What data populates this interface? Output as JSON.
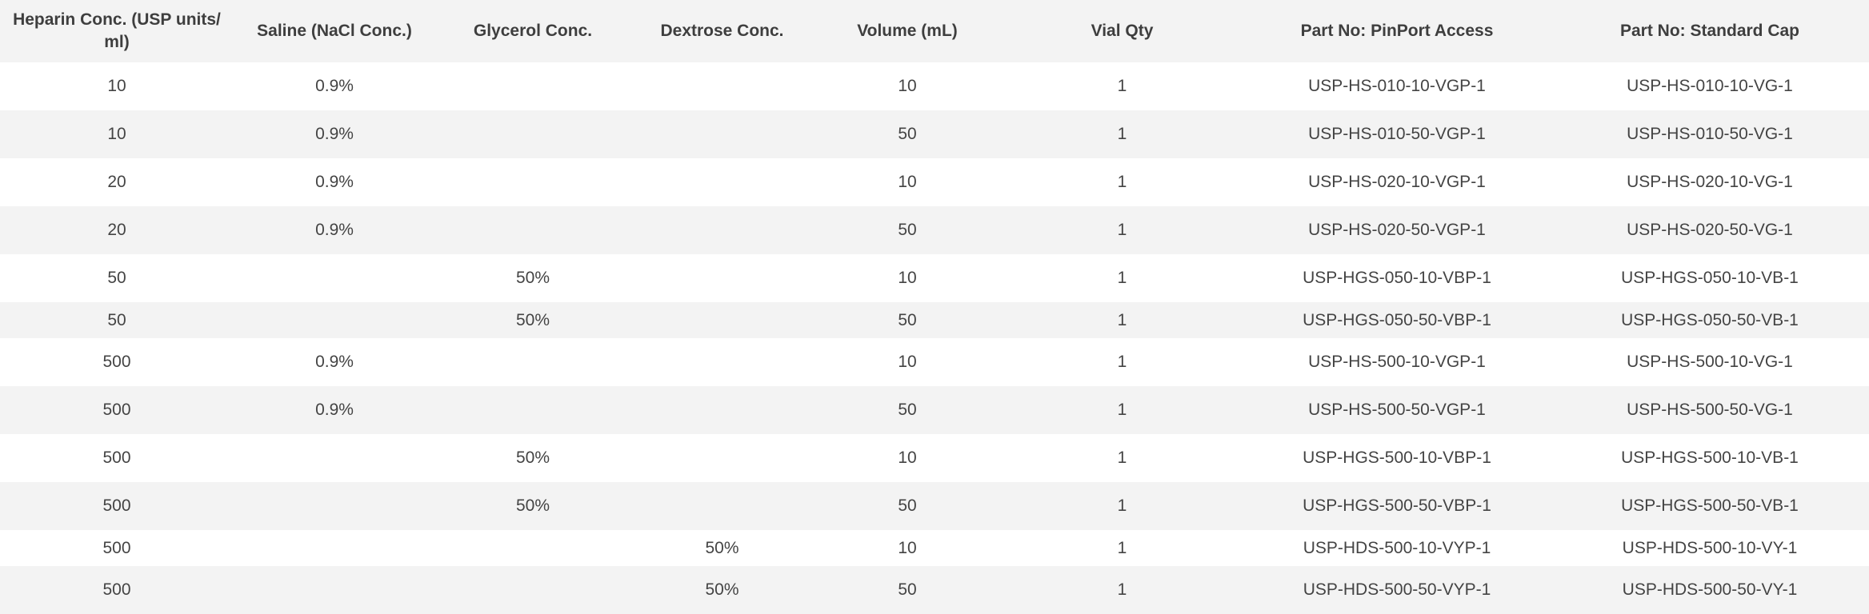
{
  "table": {
    "headers": [
      "Heparin Conc. (USP units/ ml)",
      "Saline (NaCl Conc.)",
      "Glycerol Conc.",
      "Dextrose Conc.",
      "Volume (mL)",
      "Vial Qty",
      "Part No: PinPort Access",
      "Part No: Standard Cap"
    ],
    "rows": [
      [
        "10",
        "0.9%",
        "",
        "",
        "10",
        "1",
        "USP-HS-010-10-VGP-1",
        "USP-HS-010-10-VG-1"
      ],
      [
        "10",
        "0.9%",
        "",
        "",
        "50",
        "1",
        "USP-HS-010-50-VGP-1",
        "USP-HS-010-50-VG-1"
      ],
      [
        "20",
        "0.9%",
        "",
        "",
        "10",
        "1",
        "USP-HS-020-10-VGP-1",
        "USP-HS-020-10-VG-1"
      ],
      [
        "20",
        "0.9%",
        "",
        "",
        "50",
        "1",
        "USP-HS-020-50-VGP-1",
        "USP-HS-020-50-VG-1"
      ],
      [
        "50",
        "",
        "50%",
        "",
        "10",
        "1",
        "USP-HGS-050-10-VBP-1",
        "USP-HGS-050-10-VB-1"
      ],
      [
        "50",
        "",
        "50%",
        "",
        "50",
        "1",
        "USP-HGS-050-50-VBP-1",
        "USP-HGS-050-50-VB-1"
      ],
      [
        "500",
        "0.9%",
        "",
        "",
        "10",
        "1",
        "USP-HS-500-10-VGP-1",
        "USP-HS-500-10-VG-1"
      ],
      [
        "500",
        "0.9%",
        "",
        "",
        "50",
        "1",
        "USP-HS-500-50-VGP-1",
        "USP-HS-500-50-VG-1"
      ],
      [
        "500",
        "",
        "50%",
        "",
        "10",
        "1",
        "USP-HGS-500-10-VBP-1",
        "USP-HGS-500-10-VB-1"
      ],
      [
        "500",
        "",
        "50%",
        "",
        "50",
        "1",
        "USP-HGS-500-50-VBP-1",
        "USP-HGS-500-50-VB-1"
      ],
      [
        "500",
        "",
        "",
        "50%",
        "10",
        "1",
        "USP-HDS-500-10-VYP-1",
        "USP-HDS-500-10-VY-1"
      ],
      [
        "500",
        "",
        "",
        "50%",
        "50",
        "1",
        "USP-HDS-500-50-VYP-1",
        "USP-HDS-500-50-VY-1"
      ]
    ]
  }
}
